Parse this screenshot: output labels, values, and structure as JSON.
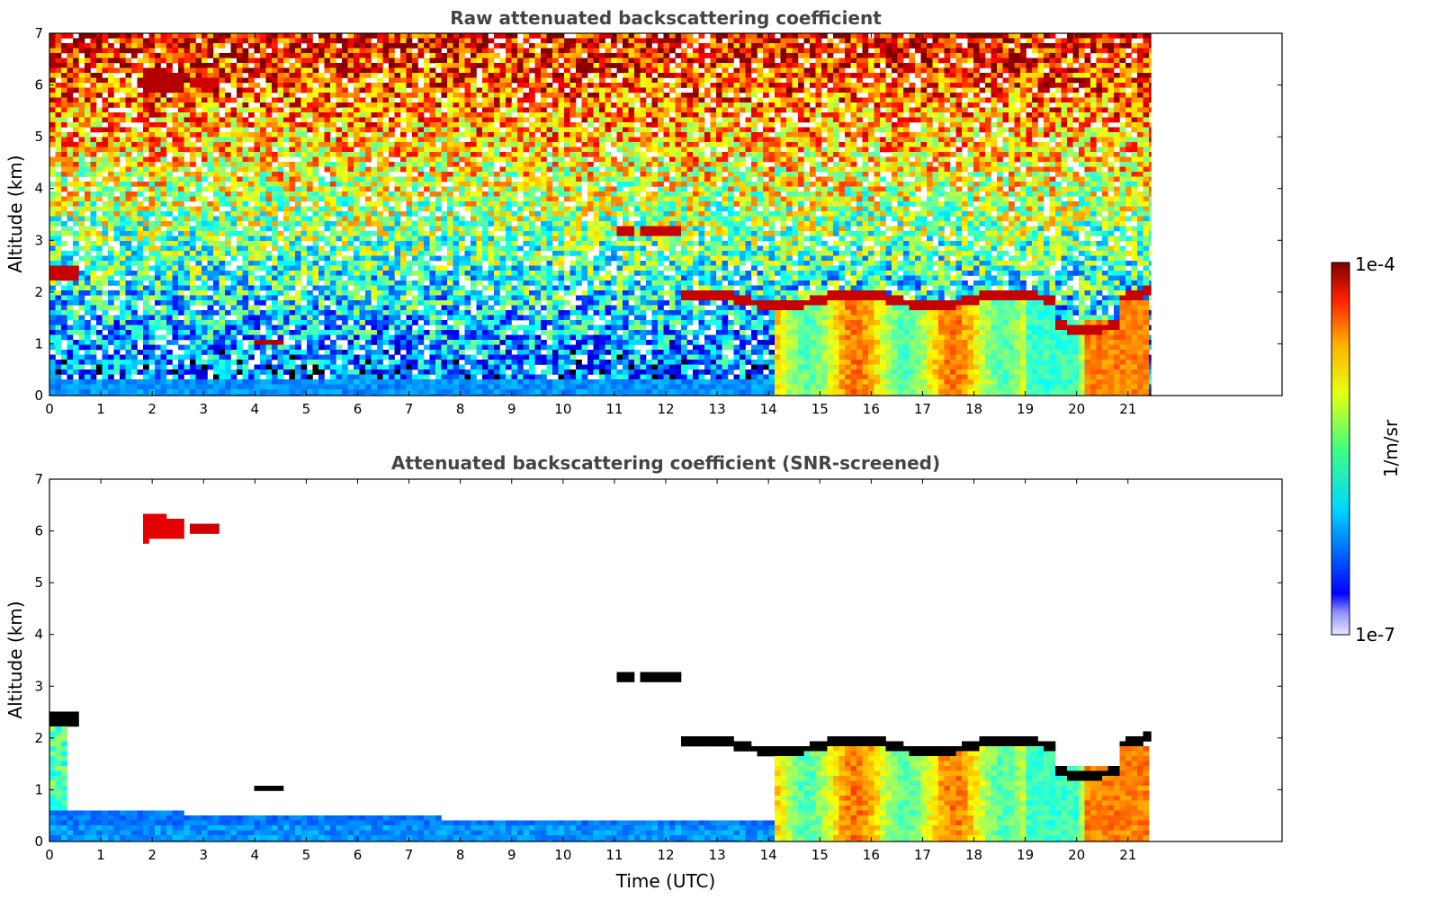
{
  "chart_data": [
    {
      "type": "heatmap",
      "title": "Raw attenuated backscattering coefficient",
      "xlabel": "",
      "ylabel": "Altitude (km)",
      "xlim": [
        0,
        24
      ],
      "ylim": [
        0,
        7
      ],
      "x_ticks": [
        "0",
        "1",
        "2",
        "3",
        "4",
        "5",
        "6",
        "7",
        "8",
        "9",
        "10",
        "11",
        "12",
        "13",
        "14",
        "15",
        "16",
        "17",
        "18",
        "19",
        "20",
        "21"
      ],
      "y_ticks": [
        "0",
        "1",
        "2",
        "3",
        "4",
        "5",
        "6",
        "7"
      ],
      "data_extent_hours": [
        0,
        21.45
      ],
      "features": [
        {
          "name": "surface_layer",
          "time": [
            0,
            21.45
          ],
          "altitude": [
            0,
            0.35
          ],
          "level": 0.3
        },
        {
          "name": "aerosol_layer_afternoon",
          "time": [
            14.1,
            21.45
          ],
          "altitude": [
            0,
            1.8
          ],
          "level": 0.62
        },
        {
          "name": "cloud_top_2km",
          "time": [
            12.3,
            21.45
          ],
          "altitude": [
            1.3,
            2.3
          ],
          "level": 0.92
        },
        {
          "name": "cloud_6km",
          "time": [
            1.8,
            3.4
          ],
          "altitude": [
            5.85,
            6.35
          ],
          "level": 0.95
        },
        {
          "name": "cloud_3km",
          "time": [
            11.1,
            12.3
          ],
          "altitude": [
            3.05,
            3.35
          ],
          "level": 0.93
        },
        {
          "name": "cloud_1km",
          "time": [
            4.0,
            4.5
          ],
          "altitude": [
            0.95,
            1.1
          ],
          "level": 0.95
        },
        {
          "name": "cloud_2_5km_early",
          "time": [
            0,
            0.55
          ],
          "altitude": [
            2.25,
            2.6
          ],
          "level": 0.93
        }
      ]
    },
    {
      "type": "heatmap",
      "title": "Attenuated backscattering coefficient (SNR-screened)",
      "xlabel": "Time (UTC)",
      "ylabel": "Altitude (km)",
      "xlim": [
        0,
        24
      ],
      "ylim": [
        0,
        7
      ],
      "x_ticks": [
        "0",
        "1",
        "2",
        "3",
        "4",
        "5",
        "6",
        "7",
        "8",
        "9",
        "10",
        "11",
        "12",
        "13",
        "14",
        "15",
        "16",
        "17",
        "18",
        "19",
        "20",
        "21"
      ],
      "y_ticks": [
        "0",
        "1",
        "2",
        "3",
        "4",
        "5",
        "6",
        "7"
      ],
      "data_extent_hours": [
        0,
        21.45
      ]
    }
  ],
  "colorbar": {
    "label": "1/m/sr",
    "max_label": "1e-4",
    "min_label": "1e-7",
    "colormap": "jet"
  }
}
